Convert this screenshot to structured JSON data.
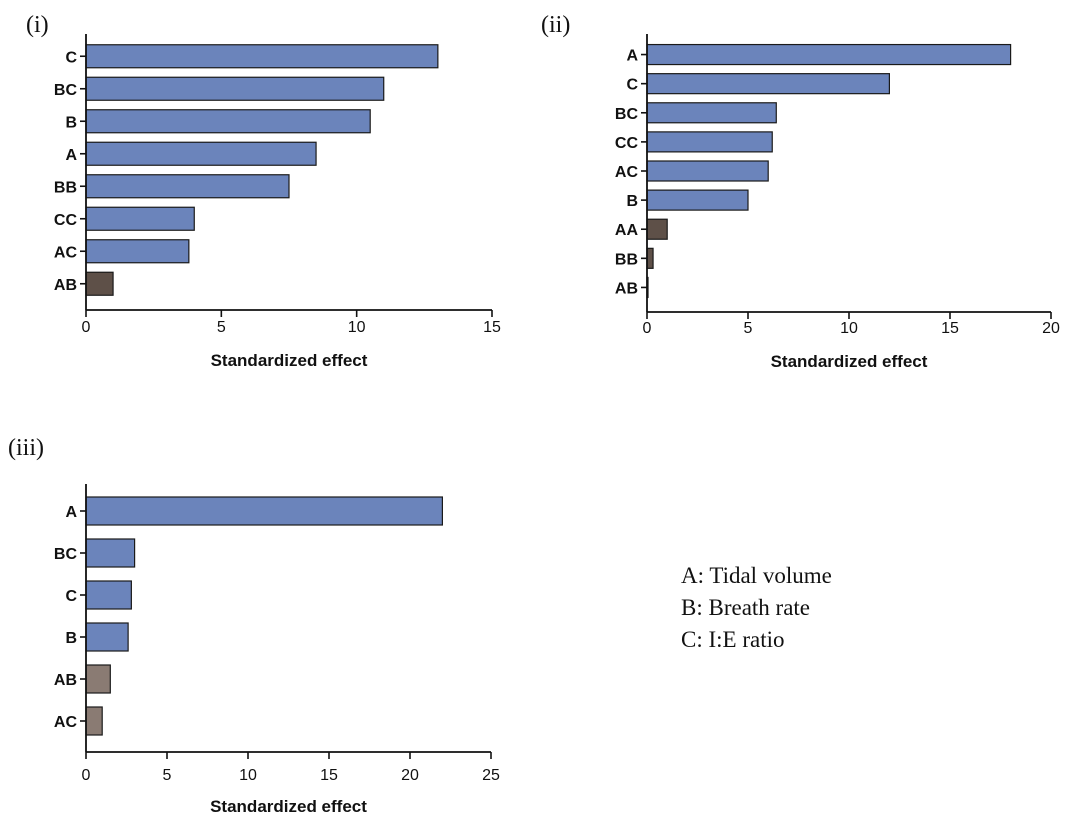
{
  "chart_data": [
    {
      "type": "bar",
      "orientation": "horizontal",
      "panel": "(i)",
      "categories": [
        "C",
        "BC",
        "B",
        "A",
        "BB",
        "CC",
        "AC",
        "AB"
      ],
      "values": [
        13.0,
        11.0,
        10.5,
        8.5,
        7.5,
        4.0,
        3.8,
        1.0
      ],
      "significant": [
        true,
        true,
        true,
        true,
        true,
        true,
        true,
        false
      ],
      "xlabel": "Standardized effect",
      "xlim": [
        0,
        15
      ],
      "xticks": [
        0,
        5,
        10,
        15
      ]
    },
    {
      "type": "bar",
      "orientation": "horizontal",
      "panel": "(ii)",
      "categories": [
        "A",
        "C",
        "BC",
        "CC",
        "AC",
        "B",
        "AA",
        "BB",
        "AB"
      ],
      "values": [
        18.0,
        12.0,
        6.4,
        6.2,
        6.0,
        5.0,
        1.0,
        0.3,
        0.05
      ],
      "significant": [
        true,
        true,
        true,
        true,
        true,
        true,
        false,
        false,
        false
      ],
      "xlabel": "Standardized effect",
      "xlim": [
        0,
        20
      ],
      "xticks": [
        0,
        5,
        10,
        15,
        20
      ]
    },
    {
      "type": "bar",
      "orientation": "horizontal",
      "panel": "(iii)",
      "categories": [
        "A",
        "BC",
        "C",
        "B",
        "AB",
        "AC"
      ],
      "values": [
        22.0,
        3.0,
        2.8,
        2.6,
        1.5,
        1.0
      ],
      "significant": [
        true,
        true,
        true,
        true,
        false,
        false
      ],
      "xlabel": "Standardized effect",
      "xlim": [
        0,
        25
      ],
      "xticks": [
        0,
        5,
        10,
        15,
        20,
        25
      ]
    }
  ],
  "legend": [
    "A: Tidal volume",
    "B: Breath rate",
    "C: I:E ratio"
  ],
  "colors": {
    "significant": "#6b84bb",
    "not_significant": "#5e5048",
    "not_significant_light": "#8a7b73",
    "axis": "#111111"
  }
}
